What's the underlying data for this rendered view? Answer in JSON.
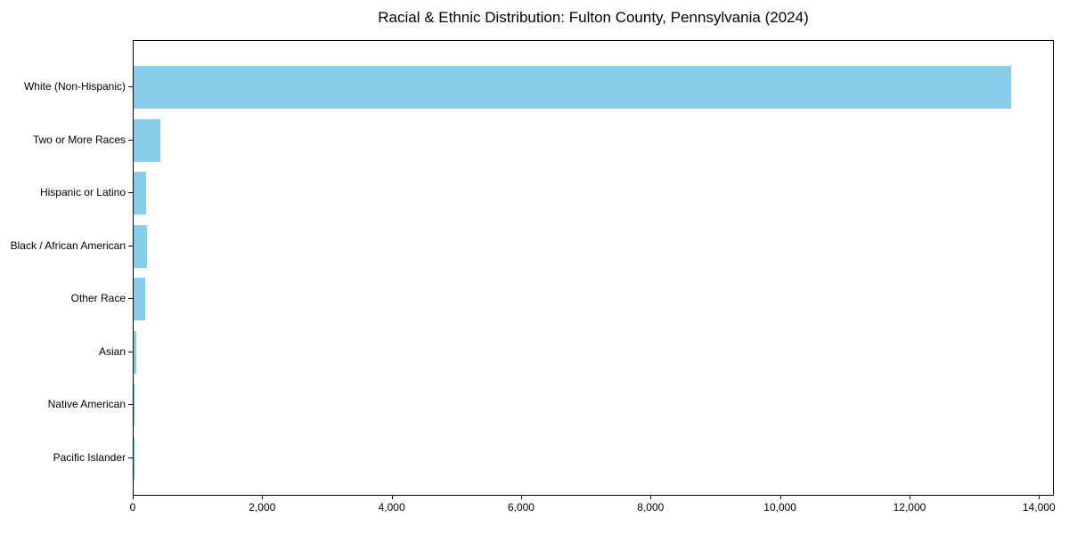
{
  "chart_data": {
    "type": "bar",
    "orientation": "horizontal",
    "title": "Racial & Ethnic Distribution: Fulton County, Pennsylvania (2024)",
    "categories": [
      "White (Non-Hispanic)",
      "Two or More Races",
      "Hispanic or Latino",
      "Black / African American",
      "Other Race",
      "Asian",
      "Native American",
      "Pacific Islander"
    ],
    "values": [
      13550,
      415,
      195,
      205,
      180,
      35,
      10,
      2
    ],
    "xlabel": "",
    "ylabel": "",
    "xlim": [
      0,
      14230
    ],
    "x_ticks": [
      0,
      2000,
      4000,
      6000,
      8000,
      10000,
      12000,
      14000
    ],
    "x_tick_labels": [
      "0",
      "2,000",
      "4,000",
      "6,000",
      "8,000",
      "10,000",
      "12,000",
      "14,000"
    ],
    "bar_color": "#87CEEB",
    "frame_color": "#000000",
    "background_color": "#ffffff",
    "grid": false,
    "legend": false
  }
}
